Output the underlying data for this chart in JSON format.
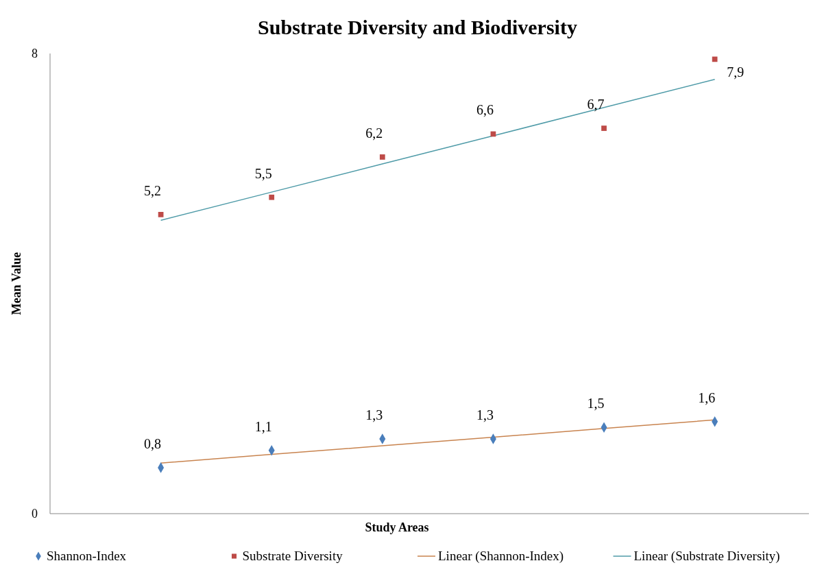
{
  "chart_data": {
    "type": "scatter",
    "title": "Substrate Diversity and Biodiversity",
    "xlabel": "Study Areas",
    "ylabel": "Mean Value",
    "categories": [
      null,
      null,
      null,
      null,
      null,
      null
    ],
    "ylim": [
      0,
      8
    ],
    "yticks": [
      0,
      8
    ],
    "grid": false,
    "legend": "bottom",
    "series": [
      {
        "name": "Shannon-Index",
        "marker": "diamond",
        "color": "#4a7ebb",
        "values": [
          0.8,
          1.1,
          1.3,
          1.3,
          1.5,
          1.6
        ],
        "value_labels": [
          "0,8",
          "1,1",
          "1,3",
          "1,3",
          "1,5",
          "1,6"
        ]
      },
      {
        "name": "Substrate Diversity",
        "marker": "square",
        "color": "#be4b48",
        "values": [
          5.2,
          5.5,
          6.2,
          6.6,
          6.7,
          7.9
        ],
        "value_labels": [
          "5,2",
          "5,5",
          "6,2",
          "6,6",
          "6,7",
          "7,9"
        ]
      },
      {
        "name": "Linear (Shannon-Index)",
        "type": "line",
        "marker": "none",
        "color": "#c8834e",
        "values": [
          0.88,
          1.03,
          1.18,
          1.33,
          1.48,
          1.63
        ]
      },
      {
        "name": "Linear (Substrate Diversity)",
        "type": "line",
        "marker": "none",
        "color": "#4f9ba8",
        "values": [
          5.1,
          5.59,
          6.08,
          6.57,
          7.06,
          7.55
        ]
      }
    ]
  }
}
